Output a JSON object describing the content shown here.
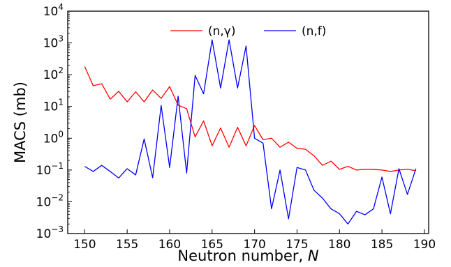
{
  "chart_data": {
    "type": "line",
    "xlabel": "Neutron number, ",
    "xlabel_var": "N",
    "ylabel": "MACS (mb)",
    "xlim": [
      148,
      190.5
    ],
    "ylim": [
      0.001,
      10000
    ],
    "yscale": "log",
    "grid": false,
    "legend": "top-center",
    "x_ticks": [
      {
        "value": 150,
        "label": "150"
      },
      {
        "value": 155,
        "label": "155"
      },
      {
        "value": 160,
        "label": "160"
      },
      {
        "value": 165,
        "label": "165"
      },
      {
        "value": 170,
        "label": "170"
      },
      {
        "value": 175,
        "label": "175"
      },
      {
        "value": 180,
        "label": "180"
      },
      {
        "value": 185,
        "label": "185"
      },
      {
        "value": 190,
        "label": "190"
      }
    ],
    "y_ticks": [
      {
        "value": 0.001,
        "base": "10",
        "exp": "−3"
      },
      {
        "value": 0.01,
        "base": "10",
        "exp": "−2"
      },
      {
        "value": 0.1,
        "base": "10",
        "exp": "−1"
      },
      {
        "value": 1,
        "base": "10",
        "exp": "0"
      },
      {
        "value": 10,
        "base": "10",
        "exp": "1"
      },
      {
        "value": 100,
        "base": "10",
        "exp": "2"
      },
      {
        "value": 1000,
        "base": "10",
        "exp": "3"
      },
      {
        "value": 10000,
        "base": "10",
        "exp": "4"
      }
    ],
    "x": [
      150,
      151,
      152,
      153,
      154,
      155,
      156,
      157,
      158,
      159,
      160,
      161,
      162,
      163,
      164,
      165,
      166,
      167,
      168,
      169,
      170,
      171,
      172,
      173,
      174,
      175,
      176,
      177,
      178,
      179,
      180,
      181,
      182,
      183,
      184,
      185,
      186,
      187,
      188,
      189
    ],
    "series": [
      {
        "name": "(n,γ)",
        "color": "#ff0000",
        "values": [
          180,
          45,
          52,
          17,
          30,
          14,
          29,
          14,
          33,
          18,
          42,
          11,
          8.5,
          1.1,
          3.5,
          0.58,
          2.1,
          0.52,
          2.2,
          0.58,
          2.5,
          0.9,
          1.0,
          0.52,
          0.75,
          0.48,
          0.45,
          0.28,
          0.14,
          0.19,
          0.105,
          0.13,
          0.1,
          0.105,
          0.104,
          0.1,
          0.09,
          0.1,
          0.105,
          0.095
        ]
      },
      {
        "name": "(n,f)",
        "color": "#0000ff",
        "values": [
          0.13,
          0.09,
          0.14,
          0.09,
          0.056,
          0.11,
          0.07,
          0.95,
          0.057,
          10.8,
          0.12,
          21,
          0.08,
          95,
          25,
          1250,
          38,
          1250,
          38,
          800,
          1.0,
          0.7,
          0.006,
          0.1,
          0.0029,
          0.12,
          0.1,
          0.023,
          0.013,
          0.006,
          0.0042,
          0.002,
          0.005,
          0.0039,
          0.006,
          0.06,
          0.0042,
          0.11,
          0.017,
          0.11
        ]
      }
    ]
  }
}
